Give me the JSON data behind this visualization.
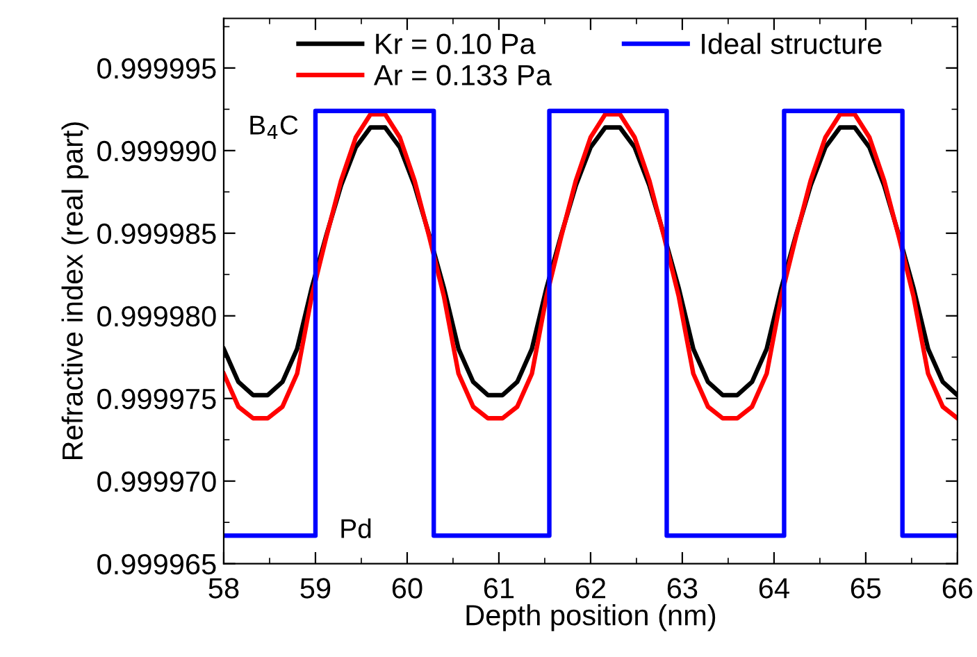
{
  "chart_data": {
    "type": "line",
    "xlabel": "Depth position (nm)",
    "ylabel": "Refractive index (real part)",
    "xlim": [
      58,
      66
    ],
    "xticks": [
      58,
      59,
      60,
      61,
      62,
      63,
      64,
      65,
      66
    ],
    "ylim": [
      0.999965,
      0.999998
    ],
    "yticks": [
      0.999965,
      {
        "value": 0.99997,
        "label": "0.999970"
      },
      0.999975,
      {
        "value": 0.99998,
        "label": "0.999980"
      },
      0.999985,
      {
        "value": 0.99999,
        "label": "0.999990"
      },
      0.999995
    ],
    "grid": false,
    "legend": "top",
    "marker": "none",
    "line_style": "solid",
    "annotations": [
      "B$_{4}$C",
      "Pd"
    ],
    "series": [
      {
        "name": "Kr = 0.10 Pa",
        "color": "#000000",
        "x": [
          58.0,
          58.16,
          58.32,
          58.48,
          58.64,
          58.8,
          58.96,
          59.12,
          59.28,
          59.44,
          59.6,
          59.76,
          59.92,
          60.08,
          60.24,
          60.4,
          60.56,
          60.72,
          60.88,
          61.04,
          61.2,
          61.36,
          61.52,
          61.68,
          61.84,
          62.0,
          62.16,
          62.32,
          62.48,
          62.64,
          62.8,
          62.96,
          63.12,
          63.28,
          63.44,
          63.6,
          63.76,
          63.92,
          64.08,
          64.24,
          64.4,
          64.56,
          64.72,
          64.88,
          65.04,
          65.2,
          65.36,
          65.52,
          65.68,
          65.84,
          66.0
        ],
        "values": [
          0.999978,
          0.999976,
          0.9999752,
          0.9999752,
          0.999976,
          0.999978,
          0.9999817,
          0.9999849,
          0.9999879,
          0.9999902,
          0.9999914,
          0.9999914,
          0.9999902,
          0.9999879,
          0.9999849,
          0.9999817,
          0.999978,
          0.999976,
          0.9999752,
          0.9999752,
          0.999976,
          0.999978,
          0.9999817,
          0.9999849,
          0.9999879,
          0.9999902,
          0.9999914,
          0.9999914,
          0.9999902,
          0.9999879,
          0.9999849,
          0.9999817,
          0.999978,
          0.999976,
          0.9999752,
          0.9999752,
          0.999976,
          0.999978,
          0.9999817,
          0.9999849,
          0.9999879,
          0.9999902,
          0.9999914,
          0.9999914,
          0.9999902,
          0.9999879,
          0.9999849,
          0.9999817,
          0.999978,
          0.999976,
          0.9999752
        ]
      },
      {
        "name": "Ar = 0.133 Pa",
        "color": "#ff0000",
        "x": [
          58.0,
          58.16,
          58.32,
          58.48,
          58.64,
          58.8,
          58.96,
          59.12,
          59.28,
          59.44,
          59.6,
          59.76,
          59.92,
          60.08,
          60.24,
          60.4,
          60.56,
          60.72,
          60.88,
          61.04,
          61.2,
          61.36,
          61.52,
          61.68,
          61.84,
          62.0,
          62.16,
          62.32,
          62.48,
          62.64,
          62.8,
          62.96,
          63.12,
          63.28,
          63.44,
          63.6,
          63.76,
          63.92,
          64.08,
          64.24,
          64.4,
          64.56,
          64.72,
          64.88,
          65.04,
          65.2,
          65.36,
          65.52,
          65.68,
          65.84,
          66.0
        ],
        "values": [
          0.9999765,
          0.9999745,
          0.9999738,
          0.9999738,
          0.9999745,
          0.9999765,
          0.9999812,
          0.9999848,
          0.9999882,
          0.9999908,
          0.9999922,
          0.9999922,
          0.9999908,
          0.9999882,
          0.9999848,
          0.9999812,
          0.9999765,
          0.9999745,
          0.9999738,
          0.9999738,
          0.9999745,
          0.9999765,
          0.9999812,
          0.9999848,
          0.9999882,
          0.9999908,
          0.9999922,
          0.9999922,
          0.9999908,
          0.9999882,
          0.9999848,
          0.9999812,
          0.9999765,
          0.9999745,
          0.9999738,
          0.9999738,
          0.9999745,
          0.9999765,
          0.9999812,
          0.9999848,
          0.9999882,
          0.9999908,
          0.9999922,
          0.9999922,
          0.9999908,
          0.9999882,
          0.9999848,
          0.9999812,
          0.9999765,
          0.9999745,
          0.9999738
        ]
      },
      {
        "name": "Ideal structure",
        "color": "#0000ff",
        "x": [
          58,
          59.0,
          59.0,
          60.29,
          60.29,
          61.55,
          61.55,
          62.83,
          62.83,
          64.11,
          64.11,
          65.4,
          65.4,
          66
        ],
        "values": [
          0.9999667,
          0.9999667,
          0.9999924,
          0.9999924,
          0.9999667,
          0.9999667,
          0.9999924,
          0.9999924,
          0.9999667,
          0.9999667,
          0.9999924,
          0.9999924,
          0.9999667,
          0.9999667
        ]
      }
    ]
  }
}
